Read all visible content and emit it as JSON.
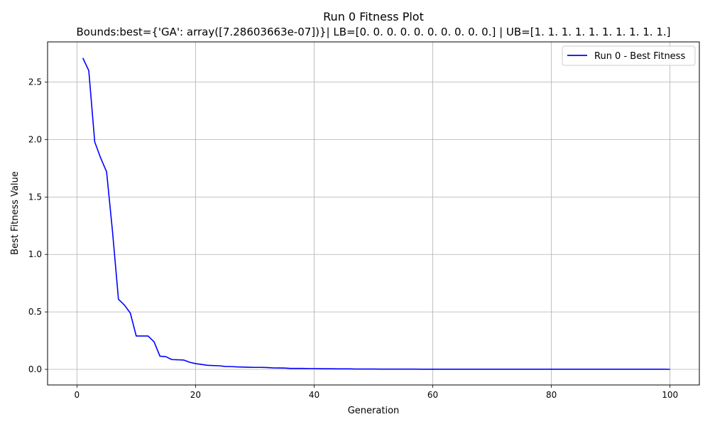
{
  "chart_data": {
    "type": "line",
    "title": "Run 0 Fitness Plot",
    "subtitle": "Bounds:best={'GA': array([7.28603663e-07])}| LB=[0. 0. 0. 0. 0. 0. 0. 0. 0. 0.] | UB=[1. 1. 1. 1. 1. 1. 1. 1. 1. 1.]",
    "xlabel": "Generation",
    "ylabel": "Best Fitness Value",
    "xlim": [
      -4.95,
      104.95
    ],
    "ylim": [
      -0.136,
      2.85
    ],
    "xticks": [
      0,
      20,
      40,
      60,
      80,
      100
    ],
    "yticks": [
      0.0,
      0.5,
      1.0,
      1.5,
      2.0,
      2.5
    ],
    "xtick_labels": [
      "0",
      "20",
      "40",
      "60",
      "80",
      "100"
    ],
    "ytick_labels": [
      "0.0",
      "0.5",
      "1.0",
      "1.5",
      "2.0",
      "2.5"
    ],
    "grid": true,
    "legend_position": "top-right",
    "series": [
      {
        "name": "Run 0 - Best Fitness",
        "color": "#0000ff",
        "x": [
          1,
          2,
          3,
          4,
          5,
          6,
          7,
          8,
          9,
          10,
          11,
          12,
          13,
          14,
          15,
          16,
          17,
          18,
          19,
          20,
          21,
          22,
          23,
          24,
          25,
          26,
          27,
          28,
          29,
          30,
          31,
          32,
          33,
          34,
          35,
          36,
          37,
          38,
          39,
          40,
          41,
          42,
          43,
          44,
          45,
          46,
          47,
          48,
          49,
          50,
          51,
          52,
          53,
          54,
          55,
          56,
          57,
          58,
          59,
          60,
          61,
          62,
          63,
          64,
          65,
          66,
          67,
          68,
          69,
          70,
          71,
          72,
          73,
          74,
          75,
          76,
          77,
          78,
          79,
          80,
          81,
          82,
          83,
          84,
          85,
          86,
          87,
          88,
          89,
          90,
          91,
          92,
          93,
          94,
          95,
          96,
          97,
          98,
          99,
          100
        ],
        "values": [
          2.71,
          2.6,
          1.98,
          1.84,
          1.72,
          1.2,
          0.61,
          0.56,
          0.49,
          0.29,
          0.29,
          0.29,
          0.24,
          0.115,
          0.11,
          0.085,
          0.083,
          0.081,
          0.062,
          0.05,
          0.043,
          0.035,
          0.033,
          0.031,
          0.025,
          0.024,
          0.021,
          0.02,
          0.018,
          0.017,
          0.017,
          0.016,
          0.013,
          0.012,
          0.011,
          0.008,
          0.008,
          0.008,
          0.007,
          0.007,
          0.006,
          0.005,
          0.005,
          0.004,
          0.004,
          0.004,
          0.003,
          0.003,
          0.003,
          0.003,
          0.002,
          0.002,
          0.002,
          0.002,
          0.002,
          0.002,
          0.002,
          0.001,
          0.001,
          0.001,
          0.001,
          0.001,
          0.001,
          0.001,
          0.001,
          0.001,
          0.001,
          0.001,
          0.001,
          0.001,
          0.001,
          0.001,
          0.001,
          0.001,
          0.001,
          0.001,
          0.001,
          0.001,
          0.001,
          0.001,
          0.001,
          0.001,
          0.001,
          0.001,
          0.001,
          0.001,
          0.001,
          0.001,
          0.001,
          0.001,
          0.001,
          0.001,
          0.001,
          0.001,
          0.001,
          0.001,
          0.001,
          0.001,
          0.001,
          7e-07
        ]
      }
    ]
  }
}
